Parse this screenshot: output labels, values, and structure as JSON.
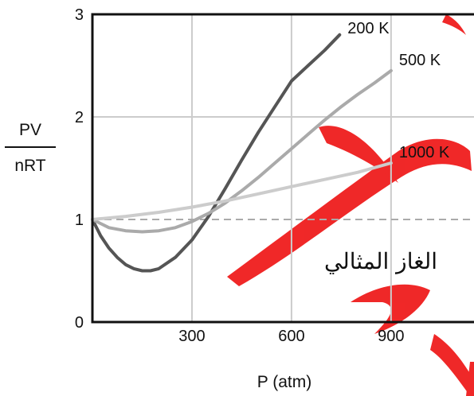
{
  "chart_data": {
    "type": "line",
    "title": "",
    "xlabel": "P (atm)",
    "ylabel_numerator": "PV",
    "ylabel_denominator": "nRT",
    "xlim": [
      0,
      1150
    ],
    "ylim": [
      0,
      3
    ],
    "x_ticks": [
      300,
      600,
      900
    ],
    "y_ticks": [
      0,
      1,
      2,
      3
    ],
    "grid": true,
    "reference_line": {
      "y": 1,
      "style": "dashed",
      "color": "#aaaaaa"
    },
    "annotation": "الغاز المثالي",
    "series": [
      {
        "name": "200 K",
        "color": "#555555",
        "points": [
          [
            0,
            1.0
          ],
          [
            25,
            0.84
          ],
          [
            50,
            0.72
          ],
          [
            75,
            0.63
          ],
          [
            100,
            0.56
          ],
          [
            125,
            0.52
          ],
          [
            150,
            0.5
          ],
          [
            175,
            0.5
          ],
          [
            200,
            0.52
          ],
          [
            250,
            0.63
          ],
          [
            300,
            0.8
          ],
          [
            350,
            1.03
          ],
          [
            400,
            1.3
          ],
          [
            450,
            1.58
          ],
          [
            500,
            1.85
          ],
          [
            550,
            2.1
          ],
          [
            600,
            2.35
          ],
          [
            650,
            2.5
          ],
          [
            700,
            2.65
          ],
          [
            745,
            2.8
          ]
        ]
      },
      {
        "name": "500 K",
        "color": "#aaaaaa",
        "points": [
          [
            0,
            1.0
          ],
          [
            50,
            0.92
          ],
          [
            100,
            0.89
          ],
          [
            150,
            0.88
          ],
          [
            200,
            0.89
          ],
          [
            250,
            0.92
          ],
          [
            300,
            0.98
          ],
          [
            350,
            1.06
          ],
          [
            400,
            1.16
          ],
          [
            450,
            1.28
          ],
          [
            500,
            1.41
          ],
          [
            550,
            1.55
          ],
          [
            600,
            1.69
          ],
          [
            650,
            1.83
          ],
          [
            700,
            1.97
          ],
          [
            750,
            2.1
          ],
          [
            800,
            2.22
          ],
          [
            850,
            2.33
          ],
          [
            900,
            2.45
          ]
        ]
      },
      {
        "name": "1000 K",
        "color": "#cccccc",
        "points": [
          [
            0,
            1.0
          ],
          [
            100,
            1.03
          ],
          [
            200,
            1.07
          ],
          [
            300,
            1.12
          ],
          [
            400,
            1.18
          ],
          [
            500,
            1.25
          ],
          [
            600,
            1.32
          ],
          [
            700,
            1.39
          ],
          [
            800,
            1.46
          ],
          [
            900,
            1.55
          ]
        ]
      }
    ]
  }
}
